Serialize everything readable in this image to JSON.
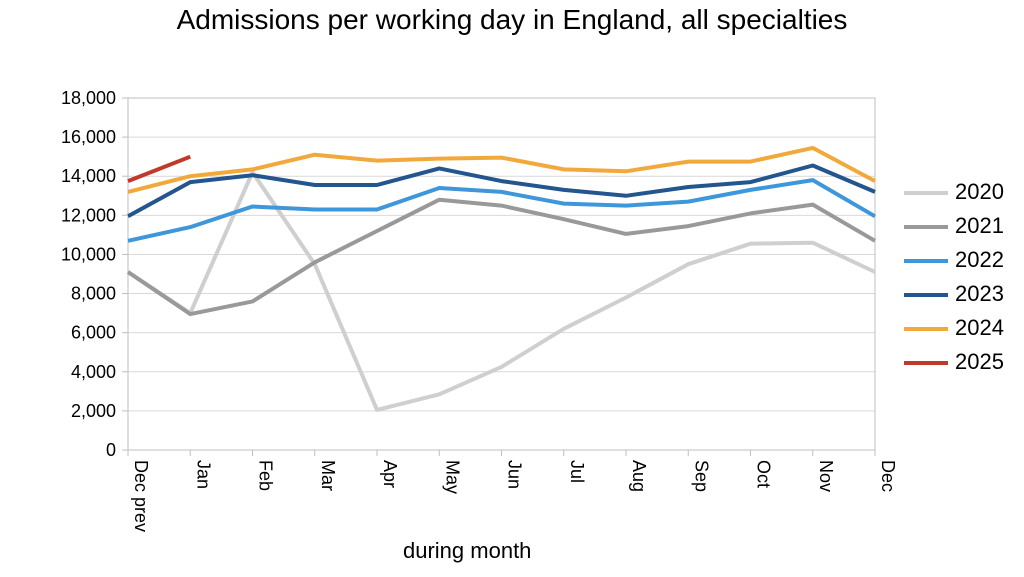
{
  "chart_data": {
    "type": "line",
    "title": "Admissions per working day in England, all specialties",
    "xlabel": "during month",
    "ylabel": "",
    "ylim": [
      0,
      18000
    ],
    "yticks": [
      0,
      2000,
      4000,
      6000,
      8000,
      10000,
      12000,
      14000,
      16000,
      18000
    ],
    "ytick_labels": [
      "0",
      "2,000",
      "4,000",
      "6,000",
      "8,000",
      "10,000",
      "12,000",
      "14,000",
      "16,000",
      "18,000"
    ],
    "categories": [
      "Dec prev",
      "Jan",
      "Feb",
      "Mar",
      "Apr",
      "May",
      "Jun",
      "Jul",
      "Aug",
      "Sep",
      "Oct",
      "Nov",
      "Dec"
    ],
    "grid": "horizontal",
    "legend_position": "right",
    "series": [
      {
        "name": "2020",
        "color": "#cfcfcf",
        "values": [
          9100,
          7000,
          14200,
          9500,
          2050,
          2850,
          4250,
          6200,
          7800,
          9500,
          10550,
          10600,
          9100
        ]
      },
      {
        "name": "2021",
        "color": "#999999",
        "values": [
          9100,
          6950,
          7600,
          9600,
          11200,
          12800,
          12500,
          11800,
          11050,
          11450,
          12100,
          12550,
          10700
        ]
      },
      {
        "name": "2022",
        "color": "#3f97db",
        "values": [
          10700,
          11400,
          12450,
          12300,
          12300,
          13400,
          13200,
          12600,
          12500,
          12700,
          13300,
          13800,
          11950
        ]
      },
      {
        "name": "2023",
        "color": "#23558f",
        "values": [
          11950,
          13700,
          14050,
          13550,
          13550,
          14400,
          13750,
          13300,
          13000,
          13450,
          13700,
          14550,
          13200
        ]
      },
      {
        "name": "2024",
        "color": "#f2a93b",
        "values": [
          13200,
          14000,
          14350,
          15100,
          14800,
          14900,
          14950,
          14350,
          14250,
          14750,
          14750,
          15450,
          13750
        ]
      },
      {
        "name": "2025",
        "color": "#c0392b",
        "values": [
          13750,
          15000,
          null,
          null,
          null,
          null,
          null,
          null,
          null,
          null,
          null,
          null,
          null
        ]
      }
    ]
  }
}
